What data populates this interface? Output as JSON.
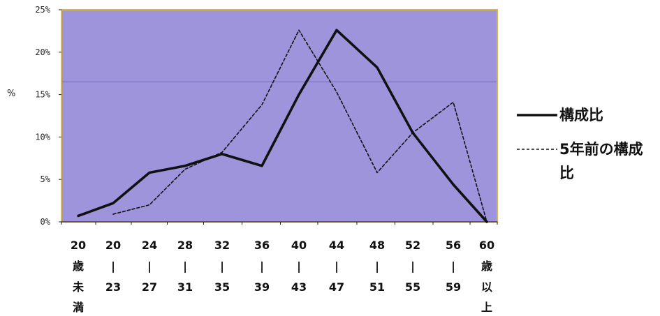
{
  "chart_data": {
    "type": "line",
    "ylabel": "%",
    "ylim": [
      0,
      25
    ],
    "y_ticks": [
      "0%",
      "5%",
      "10%",
      "15%",
      "20%",
      "25%"
    ],
    "categories": [
      [
        "20",
        "歳",
        "未",
        "満"
      ],
      [
        "20",
        "|",
        "23"
      ],
      [
        "24",
        "|",
        "27"
      ],
      [
        "28",
        "|",
        "31"
      ],
      [
        "32",
        "|",
        "35"
      ],
      [
        "36",
        "|",
        "39"
      ],
      [
        "40",
        "|",
        "43"
      ],
      [
        "44",
        "|",
        "47"
      ],
      [
        "48",
        "|",
        "51"
      ],
      [
        "52",
        "|",
        "55"
      ],
      [
        "56",
        "|",
        "59"
      ],
      [
        "60",
        "歳",
        "以",
        "上"
      ]
    ],
    "grid": false,
    "reference_line": 16.5,
    "legend_position": "right",
    "series": [
      {
        "name": "構成比",
        "style": "solid",
        "values": [
          0.7,
          2.2,
          5.8,
          6.6,
          8.0,
          6.6,
          15.0,
          22.6,
          18.2,
          10.5,
          4.4,
          0.0
        ]
      },
      {
        "name": "5年前の構成比",
        "style": "dashed",
        "values": [
          null,
          0.9,
          2.0,
          6.2,
          8.2,
          13.8,
          22.6,
          15.3,
          5.8,
          10.5,
          14.1,
          0.0
        ]
      }
    ],
    "colors": {
      "plot_background": "#9d94dc",
      "plot_border": "#d8b44a",
      "reference_line": "#6a79c6",
      "line": "#111111"
    }
  }
}
